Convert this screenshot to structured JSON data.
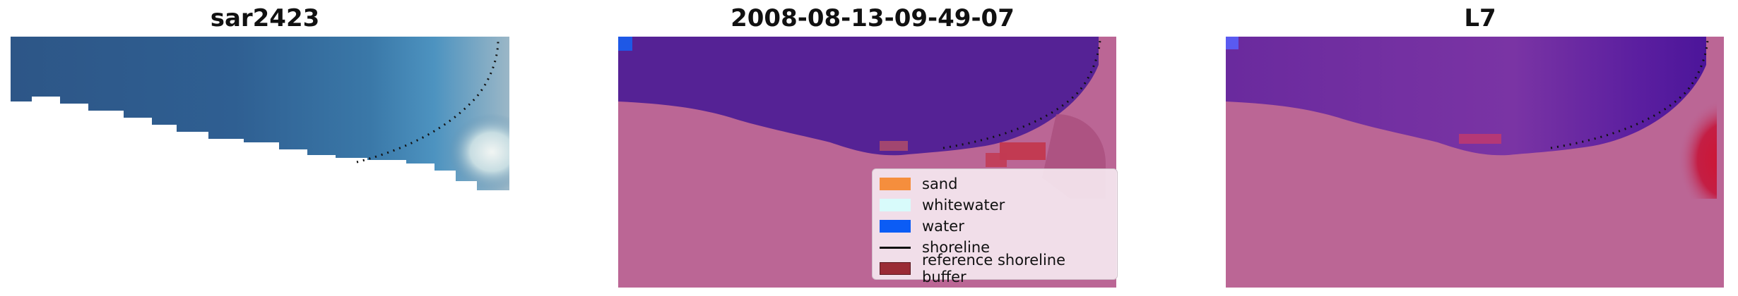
{
  "panels": [
    {
      "title": "sar2423",
      "icon": "rgb-image"
    },
    {
      "title": "2008-08-13-09-49-07",
      "icon": "classified-image"
    },
    {
      "title": "L7",
      "icon": "mndwi-image"
    }
  ],
  "legend": {
    "items": [
      {
        "label": "sand",
        "color": "#f58e3d",
        "kind": "patch"
      },
      {
        "label": "whitewater",
        "color": "#d8fbfb",
        "kind": "patch"
      },
      {
        "label": "water",
        "color": "#0b5cf5",
        "kind": "patch"
      },
      {
        "label": "shoreline",
        "color": "#111111",
        "kind": "line"
      },
      {
        "label": "reference shoreline buffer",
        "color": "#9a2b35",
        "kind": "patch"
      }
    ]
  },
  "colors": {
    "land_overlay": "#bb6695",
    "water_class": "#552295",
    "buffer": "#c23a52",
    "rgb_water": "#2e5a8e"
  }
}
